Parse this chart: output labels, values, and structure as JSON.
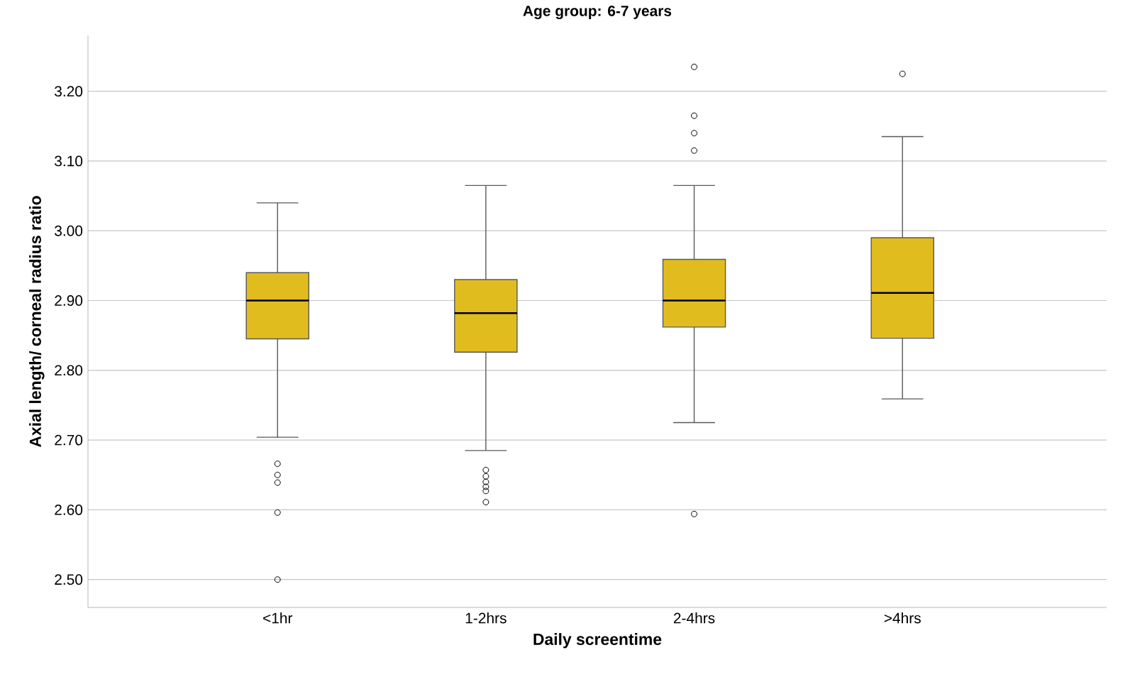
{
  "chart_data": {
    "type": "box",
    "title": "Age group: 6-7 years",
    "xlabel": "Daily screentime",
    "ylabel": "Axial length/ corneal radius ratio",
    "categories": [
      "<1hr",
      "1-2hrs",
      "2-4hrs",
      ">4hrs"
    ],
    "color": "#e1bc1f",
    "boxes": [
      {
        "low": 2.704,
        "q1": 2.845,
        "median": 2.9,
        "q3": 2.94,
        "high": 3.04,
        "outliers": [
          2.666,
          2.65,
          2.639,
          2.596,
          2.5
        ]
      },
      {
        "low": 2.685,
        "q1": 2.826,
        "median": 2.882,
        "q3": 2.93,
        "high": 3.065,
        "outliers": [
          2.657,
          2.648,
          2.64,
          2.633,
          2.627,
          2.611
        ]
      },
      {
        "low": 2.725,
        "q1": 2.862,
        "median": 2.9,
        "q3": 2.959,
        "high": 3.065,
        "outliers": [
          3.235,
          3.165,
          3.14,
          3.115,
          2.594
        ]
      },
      {
        "low": 2.759,
        "q1": 2.846,
        "median": 2.911,
        "q3": 2.99,
        "high": 3.135,
        "outliers": [
          3.225
        ]
      }
    ],
    "ylim": [
      2.46,
      3.28
    ],
    "yticks": [
      {
        "value": 2.5,
        "label": "2.50"
      },
      {
        "value": 2.6,
        "label": "2.60"
      },
      {
        "value": 2.7,
        "label": "2.70"
      },
      {
        "value": 2.8,
        "label": "2.80"
      },
      {
        "value": 2.9,
        "label": "2.90"
      },
      {
        "value": 3.0,
        "label": "3.00"
      },
      {
        "value": 3.1,
        "label": "3.10"
      },
      {
        "value": 3.2,
        "label": "3.20"
      }
    ],
    "grid": "y",
    "marker": "circle"
  }
}
